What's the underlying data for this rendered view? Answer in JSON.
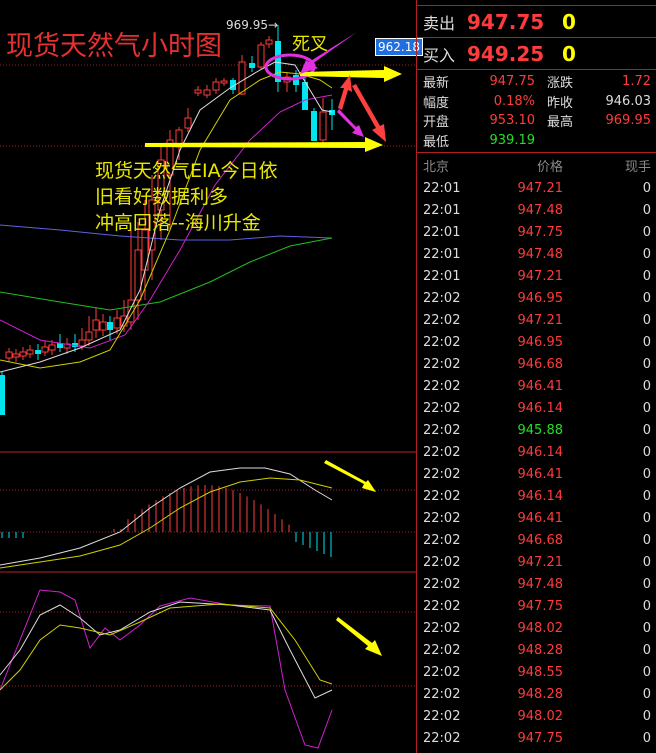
{
  "chart": {
    "title": "现货天然气小时图",
    "annotation_lines": [
      "现货天然气EIA今日依",
      "旧看好数据利多",
      "冲高回落--海川升金"
    ],
    "cross_label": "死叉",
    "high_label": "969.95→",
    "last_price_tag": "962.18"
  },
  "quote": {
    "sell_label": "卖出",
    "sell_price": "947.75",
    "sell_vol": "0",
    "buy_label": "买入",
    "buy_price": "949.25",
    "buy_vol": "0",
    "stats": [
      {
        "k": "最新",
        "v": "947.75",
        "c": "red",
        "k2": "涨跌",
        "v2": "1.72",
        "c2": "red"
      },
      {
        "k": "幅度",
        "v": "0.18%",
        "c": "red",
        "k2": "昨收",
        "v2": "946.03",
        "c2": "wht"
      },
      {
        "k": "开盘",
        "v": "953.10",
        "c": "red",
        "k2": "最高",
        "v2": "969.95",
        "c2": "red"
      },
      {
        "k": "最低",
        "v": "939.19",
        "c": "grn",
        "k2": "",
        "v2": "",
        "c2": "wht"
      }
    ]
  },
  "ticks": {
    "headers": [
      "北京",
      "价格",
      "现手"
    ],
    "rows": [
      [
        "22:01",
        "947.21",
        "0",
        "red"
      ],
      [
        "22:01",
        "947.48",
        "0",
        "red"
      ],
      [
        "22:01",
        "947.75",
        "0",
        "red"
      ],
      [
        "22:01",
        "947.48",
        "0",
        "red"
      ],
      [
        "22:01",
        "947.21",
        "0",
        "red"
      ],
      [
        "22:02",
        "946.95",
        "0",
        "red"
      ],
      [
        "22:02",
        "947.21",
        "0",
        "red"
      ],
      [
        "22:02",
        "946.95",
        "0",
        "red"
      ],
      [
        "22:02",
        "946.68",
        "0",
        "red"
      ],
      [
        "22:02",
        "946.41",
        "0",
        "red"
      ],
      [
        "22:02",
        "946.14",
        "0",
        "red"
      ],
      [
        "22:02",
        "945.88",
        "0",
        "grn"
      ],
      [
        "22:02",
        "946.14",
        "0",
        "red"
      ],
      [
        "22:02",
        "946.41",
        "0",
        "red"
      ],
      [
        "22:02",
        "946.14",
        "0",
        "red"
      ],
      [
        "22:02",
        "946.41",
        "0",
        "red"
      ],
      [
        "22:02",
        "946.68",
        "0",
        "red"
      ],
      [
        "22:02",
        "947.21",
        "0",
        "red"
      ],
      [
        "22:02",
        "947.48",
        "0",
        "red"
      ],
      [
        "22:02",
        "947.75",
        "0",
        "red"
      ],
      [
        "22:02",
        "948.02",
        "0",
        "red"
      ],
      [
        "22:02",
        "948.28",
        "0",
        "red"
      ],
      [
        "22:02",
        "948.55",
        "0",
        "red"
      ],
      [
        "22:02",
        "948.28",
        "0",
        "red"
      ],
      [
        "22:02",
        "948.02",
        "0",
        "red"
      ],
      [
        "22:02",
        "947.75",
        "0",
        "red"
      ]
    ]
  }
}
